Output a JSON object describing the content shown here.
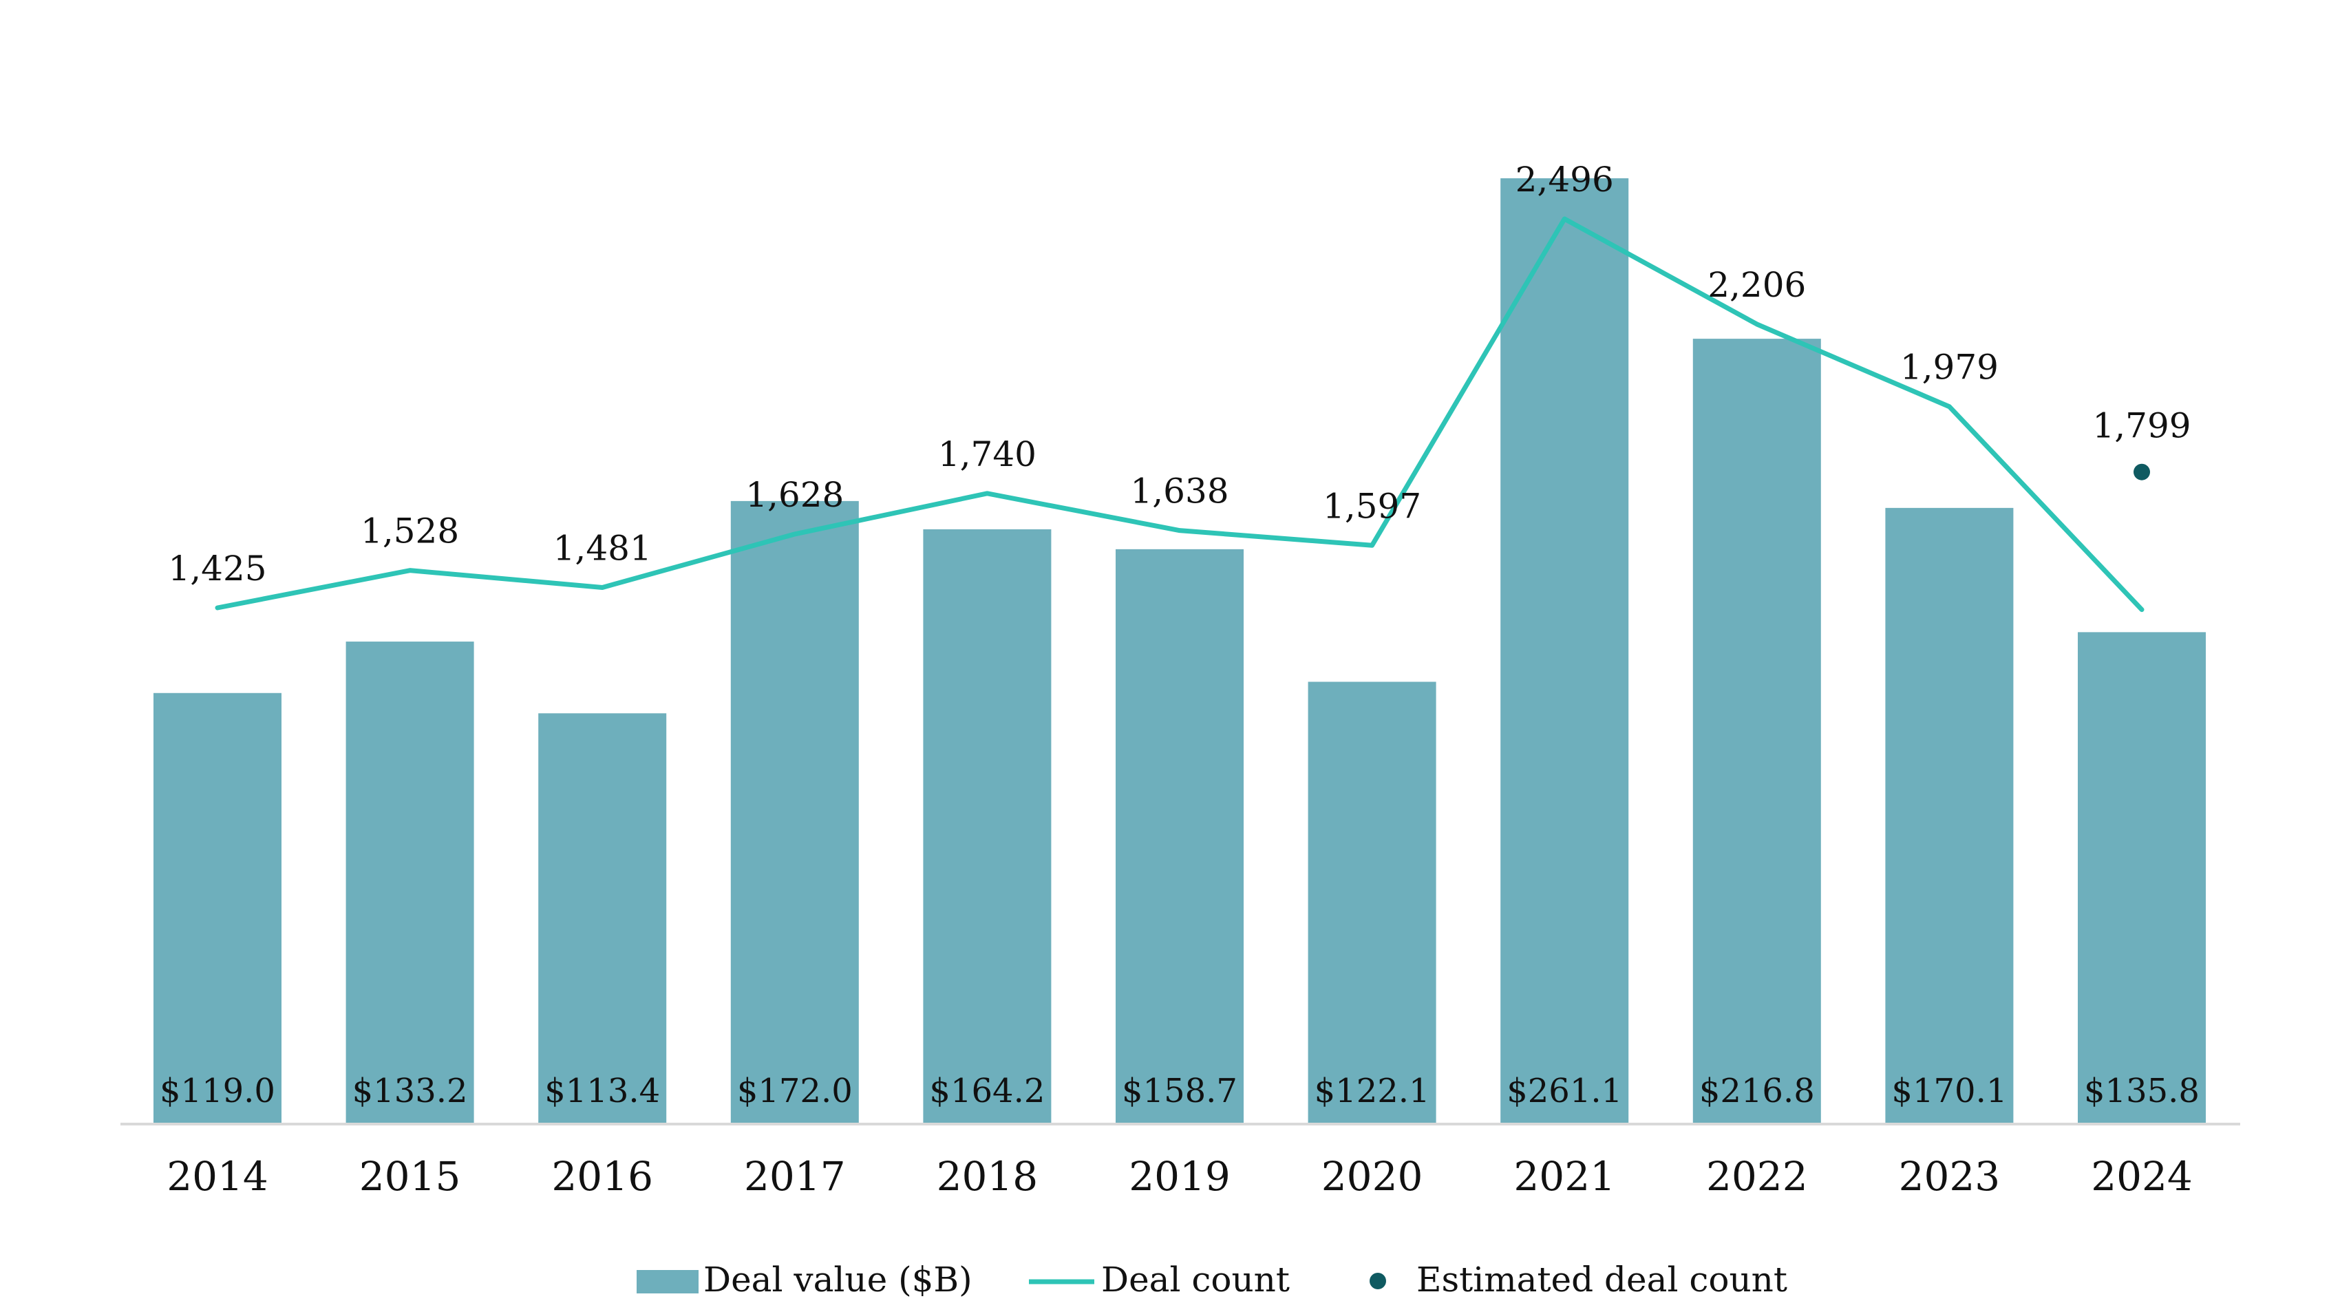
{
  "chart_data": {
    "type": "bar",
    "title": "",
    "xlabel": "",
    "ylabel": "",
    "categories": [
      "2014",
      "2015",
      "2016",
      "2017",
      "2018",
      "2019",
      "2020",
      "2021",
      "2022",
      "2023",
      "2024"
    ],
    "series": [
      {
        "name": "Deal value ($B)",
        "type": "bar",
        "axis": "left",
        "values": [
          119.0,
          133.2,
          113.4,
          172.0,
          164.2,
          158.7,
          122.1,
          261.1,
          216.8,
          170.1,
          135.8
        ],
        "labels": [
          "$119.0",
          "$133.2",
          "$113.4",
          "$172.0",
          "$164.2",
          "$158.7",
          "$122.1",
          "$261.1",
          "$216.8",
          "$170.1",
          "$135.8"
        ]
      },
      {
        "name": "Deal count",
        "type": "line",
        "axis": "right",
        "values": [
          1425,
          1528,
          1481,
          1628,
          1740,
          1638,
          1597,
          2496,
          2206,
          1979,
          1420
        ],
        "labels": [
          "1,425",
          "1,528",
          "1,481",
          "1,628",
          "1,740",
          "1,638",
          "1,597",
          "2,496",
          "2,206",
          "1,979",
          ""
        ]
      },
      {
        "name": "Estimated deal count",
        "type": "scatter",
        "axis": "right",
        "points": [
          {
            "x": "2024",
            "y": 1799,
            "label": "1,799"
          }
        ]
      }
    ],
    "ylim": [
      0,
      261.1
    ],
    "y2lim": [
      0,
      2496
    ],
    "grid": false,
    "legend_position": "bottom-center",
    "colors": {
      "bar": "#6eafbc",
      "line": "#2ec4b6",
      "marker": "#0f5a61",
      "text": "#111111",
      "axis": "#d9d9d9"
    }
  }
}
